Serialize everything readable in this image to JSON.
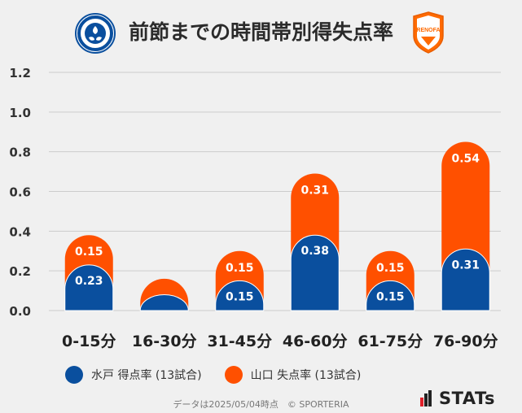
{
  "header": {
    "title": "前節までの時間帯別得失点率",
    "left_logo_text": "MITO HOLLYHOCK",
    "right_logo_text": "RENOFA"
  },
  "legend": {
    "mito": "水戸 得点率 (13試合)",
    "yamaguchi": "山口 失点率 (13試合)"
  },
  "footer": {
    "note": "データは2025/05/04時点　© SPORTERIA",
    "brand": "STATs"
  },
  "colors": {
    "mito": "#0a4f9e",
    "yamaguchi": "#ff5000",
    "grid": "#cccccc"
  },
  "chart_data": {
    "type": "bar",
    "stacked": true,
    "title": "前節までの時間帯別得失点率",
    "categories": [
      "0-15分",
      "16-30分",
      "31-45分",
      "46-60分",
      "61-75分",
      "76-90分"
    ],
    "series": [
      {
        "name": "水戸 得点率 (13試合)",
        "values": [
          0.23,
          0.08,
          0.15,
          0.38,
          0.15,
          0.31
        ],
        "labels": [
          "0.23",
          "",
          "0.15",
          "0.38",
          "0.15",
          "0.31"
        ]
      },
      {
        "name": "山口 失点率 (13試合)",
        "values": [
          0.15,
          0.08,
          0.15,
          0.31,
          0.15,
          0.54
        ],
        "labels": [
          "0.15",
          "",
          "0.15",
          "0.31",
          "0.15",
          "0.54"
        ]
      }
    ],
    "yticks": [
      "0.0",
      "0.2",
      "0.4",
      "0.6",
      "0.8",
      "1.0",
      "1.2"
    ],
    "ylim": [
      0,
      1.2
    ],
    "grid": true,
    "legend_position": "bottom-left"
  }
}
